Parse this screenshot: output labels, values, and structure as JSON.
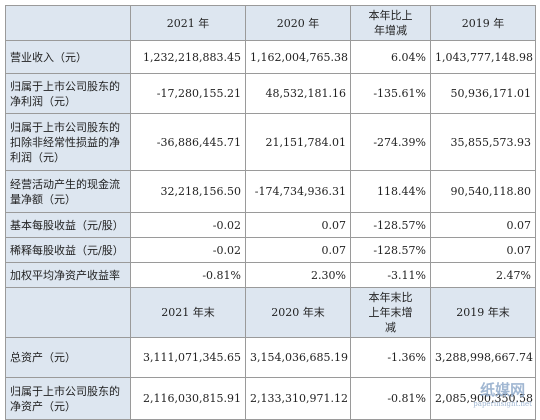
{
  "table": {
    "header1": [
      "2021 年",
      "2020 年",
      "本年比上年增减",
      "2019 年"
    ],
    "rows1": [
      [
        "营业收入（元）",
        "1,232,218,883.45",
        "1,162,004,765.38",
        "6.04%",
        "1,043,777,148.98"
      ],
      [
        "归属于上市公司股东的净利润（元）",
        "-17,280,155.21",
        "48,532,181.16",
        "-135.61%",
        "50,936,171.01"
      ],
      [
        "归属于上市公司股东的扣除非经常性损益的净利润（元）",
        "-36,886,445.71",
        "21,151,784.01",
        "-274.39%",
        "35,855,573.93"
      ],
      [
        "经营活动产生的现金流量净额（元）",
        "32,218,156.50",
        "-174,734,936.31",
        "118.44%",
        "90,540,118.80"
      ],
      [
        "基本每股收益（元/股）",
        "-0.02",
        "0.07",
        "-128.57%",
        "0.07"
      ],
      [
        "稀释每股收益（元/股）",
        "-0.02",
        "0.07",
        "-128.57%",
        "0.07"
      ],
      [
        "加权平均净资产收益率",
        "-0.81%",
        "2.30%",
        "-3.11%",
        "2.47%"
      ]
    ],
    "header2": [
      "2021 年末",
      "2020 年末",
      "本年末比上年末增减",
      "2019 年末"
    ],
    "rows2": [
      [
        "总资产（元）",
        "3,111,071,345.65",
        "3,154,036,685.19",
        "-1.36%",
        "3,288,998,667.74"
      ],
      [
        "归属于上市公司股东的净资产（元）",
        "2,116,030,815.91",
        "2,133,310,971.12",
        "-0.81%",
        "2,085,900,350.58"
      ]
    ]
  },
  "watermark": {
    "name": "纸媒网",
    "url": "paperinsight.net"
  }
}
